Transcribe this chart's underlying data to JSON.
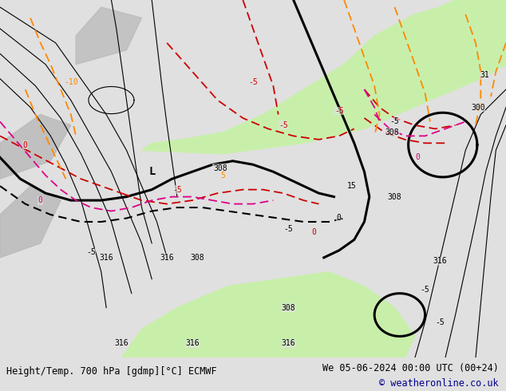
{
  "title_left": "Height/Temp. 700 hPa [gdmp][°C] ECMWF",
  "title_right": "We 05-06-2024 00:00 UTC (00+24)",
  "copyright": "© weatheronline.co.uk",
  "bg_color": "#e0e0e0",
  "land_green": "#c8efaa",
  "grey_land": "#b8b8b8",
  "bottom_bg": "#eeeeee",
  "title_fontsize": 8.5,
  "copyright_color": "#00008B",
  "fig_w": 6.34,
  "fig_h": 4.9,
  "dpi": 100,
  "black_thin_lw": 0.8,
  "black_thick_lw": 2.2,
  "temp_lw": 1.3
}
